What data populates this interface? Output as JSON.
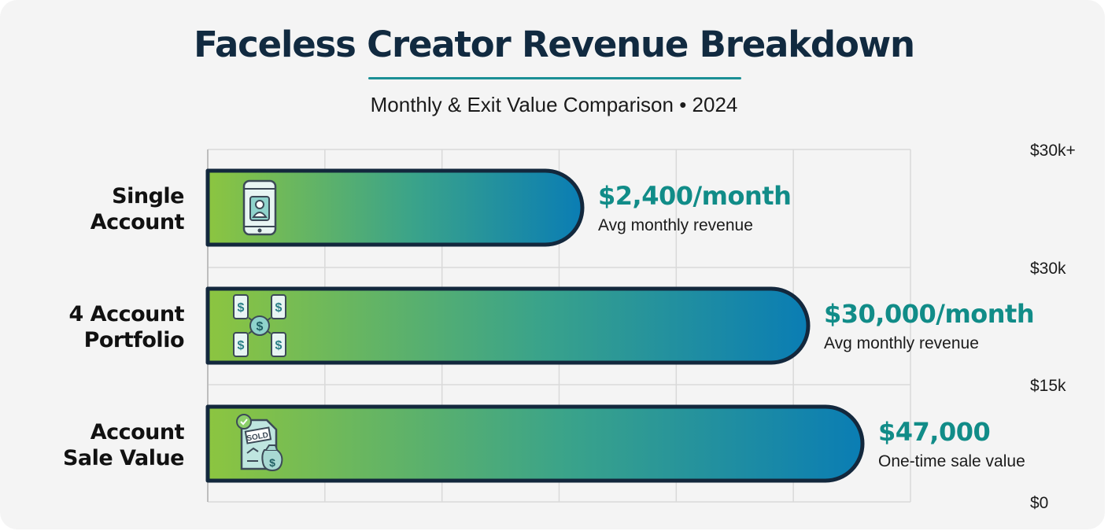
{
  "header": {
    "title": "Faceless Creator Revenue Breakdown",
    "subtitle": "Monthly & Exit Value Comparison • 2024"
  },
  "chart_data": {
    "type": "bar",
    "orientation": "horizontal",
    "title": "Faceless Creator Revenue Breakdown",
    "subtitle": "Monthly & Exit Value Comparison • 2024",
    "categories": [
      [
        "Single",
        "Account"
      ],
      [
        "4 Account",
        "Portfolio"
      ],
      [
        "Account",
        "Sale Value"
      ]
    ],
    "values": [
      2400,
      30000,
      47000
    ],
    "value_labels": [
      "$2,400/month",
      "$30,000/month",
      "$47,000"
    ],
    "value_notes": [
      "Avg monthly revenue",
      "Avg monthly revenue",
      "One-time sale value"
    ],
    "icons": [
      "smartphone-user-icon",
      "phone-portfolio-dollar-icon",
      "sold-document-money-bag-icon"
    ],
    "tick_labels": [
      "$30k+",
      "$30k",
      "$15k",
      "$0"
    ],
    "grid": true,
    "colors": {
      "bar_start": "#8cc540",
      "bar_mid": "#3aa38a",
      "bar_end": "#0a7db4",
      "bar_outline": "#13283d",
      "value_text": "#118c88"
    }
  }
}
